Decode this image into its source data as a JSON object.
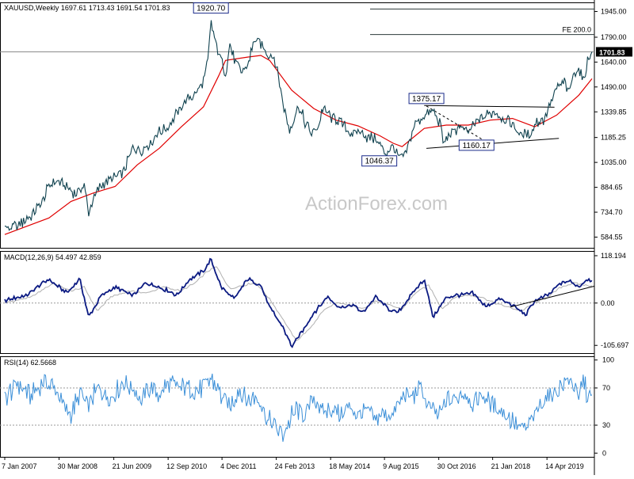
{
  "window": {
    "symbol": "XAUUSD,Weekly",
    "ohlc": "1697.61 1713.43 1691.54 1701.83"
  },
  "watermark": "ActionForex.com",
  "colors": {
    "price": "#10424f",
    "ma": "#e00000",
    "macd_main": "#0b1a82",
    "macd_signal": "#b0b0b0",
    "rsi": "#3b8fd8",
    "trendline": "#000000",
    "fe_line": "#2b3a3a",
    "last_price_bg": "#000000"
  },
  "chart_data": [
    {
      "type": "line",
      "name": "price-panel",
      "title": "XAUUSD,Weekly",
      "ylim": [
        520,
        2000
      ],
      "x_labels": [
        "7 Jan 2007",
        "30 Mar 2008",
        "21 Jun 2009",
        "12 Sep 2010",
        "4 Dec 2011",
        "24 Feb 2013",
        "18 May 2014",
        "9 Aug 2015",
        "30 Oct 2016",
        "21 Jan 2018",
        "14 Apr 2019"
      ],
      "y_ticks": [
        "1945.00",
        "1790.00",
        "1640.00",
        "1490.00",
        "1339.85",
        "1185.25",
        "1035.00",
        "884.65",
        "734.70",
        "584.55"
      ],
      "y_tick_values": [
        1945,
        1790,
        1640,
        1490,
        1339.85,
        1185.25,
        1035,
        884.65,
        734.7,
        584.55
      ],
      "last_price": {
        "label": "1701.83",
        "value": 1701.83
      },
      "hlines": [
        {
          "value": 1960,
          "label": ""
        },
        {
          "value": 1806,
          "label": "FE 200.0"
        },
        {
          "value": 1701.83,
          "label": ""
        }
      ],
      "annotations": [
        {
          "label": "1920.70",
          "year": 2011.67,
          "value": 1920.7
        },
        {
          "label": "1375.17",
          "year": 2016.55,
          "value": 1375.17
        },
        {
          "label": "1160.17",
          "year": 2017.9,
          "value": 1160.17
        },
        {
          "label": "1046.37",
          "year": 2015.95,
          "value": 1046.37
        }
      ],
      "trendlines": [
        {
          "x": [
            2016.5,
            2019.45
          ],
          "y": [
            1378,
            1368
          ],
          "dashed": false
        },
        {
          "x": [
            2016.55,
            2019.55
          ],
          "y": [
            1120,
            1180
          ],
          "dashed": false
        },
        {
          "x": [
            2016.55,
            2017.9
          ],
          "y": [
            1375,
            1160
          ],
          "dashed": true
        }
      ],
      "series": [
        {
          "name": "XAUUSD",
          "x": [
            2007.0,
            2007.3,
            2007.6,
            2007.9,
            2008.0,
            2008.2,
            2008.4,
            2008.6,
            2008.8,
            2008.9,
            2009.1,
            2009.3,
            2009.5,
            2009.7,
            2009.9,
            2010.1,
            2010.3,
            2010.5,
            2010.7,
            2010.9,
            2011.1,
            2011.3,
            2011.5,
            2011.6,
            2011.67,
            2011.75,
            2011.85,
            2012.0,
            2012.1,
            2012.2,
            2012.35,
            2012.5,
            2012.65,
            2012.8,
            2012.95,
            2013.1,
            2013.2,
            2013.3,
            2013.45,
            2013.55,
            2013.65,
            2013.8,
            2013.95,
            2014.1,
            2014.2,
            2014.4,
            2014.6,
            2014.75,
            2014.9,
            2015.05,
            2015.2,
            2015.4,
            2015.6,
            2015.8,
            2015.95,
            2016.1,
            2016.25,
            2016.4,
            2016.55,
            2016.7,
            2016.85,
            2016.95,
            2017.05,
            2017.3,
            2017.5,
            2017.7,
            2017.9,
            2018.1,
            2018.3,
            2018.5,
            2018.7,
            2018.9,
            2019.05,
            2019.2,
            2019.4,
            2019.55,
            2019.7,
            2019.75,
            2019.8,
            2019.9,
            2020.0,
            2020.1,
            2020.2,
            2020.3
          ],
          "values": [
            632,
            655,
            715,
            820,
            905,
            930,
            880,
            850,
            890,
            740,
            870,
            920,
            940,
            990,
            1120,
            1110,
            1150,
            1220,
            1250,
            1330,
            1400,
            1450,
            1520,
            1640,
            1890,
            1780,
            1690,
            1570,
            1740,
            1650,
            1580,
            1620,
            1770,
            1750,
            1690,
            1660,
            1560,
            1390,
            1230,
            1300,
            1380,
            1280,
            1210,
            1250,
            1360,
            1310,
            1290,
            1230,
            1200,
            1220,
            1190,
            1180,
            1090,
            1120,
            1060,
            1100,
            1250,
            1290,
            1330,
            1340,
            1280,
            1140,
            1200,
            1250,
            1220,
            1280,
            1320,
            1340,
            1300,
            1260,
            1200,
            1210,
            1280,
            1290,
            1410,
            1500,
            1520,
            1460,
            1480,
            1580,
            1600,
            1520,
            1640,
            1701.83
          ]
        },
        {
          "name": "MA",
          "x": [
            2007.0,
            2008.0,
            2008.5,
            2009.0,
            2009.5,
            2010.0,
            2010.5,
            2011.0,
            2011.5,
            2011.85,
            2012.0,
            2012.5,
            2012.8,
            2013.0,
            2013.5,
            2014.0,
            2014.5,
            2015.0,
            2015.5,
            2015.8,
            2016.0,
            2016.5,
            2017.0,
            2017.5,
            2018.0,
            2018.5,
            2019.0,
            2019.5,
            2020.0,
            2020.3
          ],
          "values": [
            600,
            700,
            800,
            850,
            890,
            1020,
            1120,
            1250,
            1370,
            1560,
            1650,
            1670,
            1680,
            1650,
            1470,
            1360,
            1290,
            1255,
            1195,
            1150,
            1130,
            1240,
            1260,
            1260,
            1290,
            1300,
            1250,
            1320,
            1440,
            1540
          ]
        }
      ]
    },
    {
      "type": "line",
      "name": "macd-panel",
      "title": "MACD(12,26,9) 54.497 42.859",
      "ylim": [
        -125,
        130
      ],
      "y_ticks": [
        "118.194",
        "0.00",
        "-105.697"
      ],
      "y_tick_values": [
        118.194,
        0,
        -105.697
      ],
      "series": [
        {
          "name": "MACD main",
          "x": [
            2007.0,
            2007.5,
            2008.0,
            2008.4,
            2008.7,
            2008.9,
            2009.2,
            2009.5,
            2009.9,
            2010.2,
            2010.5,
            2010.9,
            2011.2,
            2011.5,
            2011.67,
            2011.9,
            2012.2,
            2012.5,
            2012.8,
            2013.0,
            2013.3,
            2013.5,
            2013.8,
            2014.0,
            2014.3,
            2014.6,
            2014.9,
            2015.1,
            2015.4,
            2015.7,
            2015.9,
            2016.2,
            2016.5,
            2016.7,
            2017.0,
            2017.3,
            2017.6,
            2017.9,
            2018.2,
            2018.5,
            2018.8,
            2019.0,
            2019.3,
            2019.6,
            2019.8,
            2020.0,
            2020.2,
            2020.3
          ],
          "values": [
            5,
            20,
            60,
            25,
            60,
            -35,
            20,
            40,
            18,
            50,
            40,
            20,
            60,
            80,
            110,
            40,
            10,
            60,
            45,
            -10,
            -60,
            -110,
            -60,
            -25,
            15,
            -10,
            -5,
            -25,
            15,
            -15,
            -25,
            20,
            60,
            -35,
            15,
            20,
            25,
            -10,
            10,
            -5,
            -30,
            5,
            20,
            50,
            55,
            40,
            60,
            54.497
          ]
        },
        {
          "name": "MACD signal",
          "x": [
            2007.0,
            2007.6,
            2008.1,
            2008.5,
            2008.8,
            2009.1,
            2009.4,
            2009.8,
            2010.2,
            2010.6,
            2011.0,
            2011.3,
            2011.6,
            2011.8,
            2012.1,
            2012.4,
            2012.7,
            2013.0,
            2013.3,
            2013.6,
            2013.9,
            2014.2,
            2014.5,
            2014.8,
            2015.1,
            2015.4,
            2015.7,
            2016.0,
            2016.3,
            2016.6,
            2016.9,
            2017.2,
            2017.5,
            2017.8,
            2018.1,
            2018.4,
            2018.7,
            2019.0,
            2019.3,
            2019.6,
            2019.9,
            2020.1,
            2020.3
          ],
          "values": [
            0,
            15,
            50,
            30,
            40,
            -20,
            15,
            30,
            25,
            40,
            30,
            50,
            80,
            90,
            35,
            45,
            50,
            10,
            -40,
            -95,
            -65,
            -20,
            0,
            -5,
            -15,
            5,
            -5,
            -15,
            25,
            45,
            -15,
            15,
            20,
            15,
            0,
            -10,
            -20,
            0,
            15,
            40,
            50,
            45,
            42.859
          ]
        }
      ],
      "trendlines": [
        {
          "x": [
            2018.45,
            2020.35
          ],
          "y": [
            -10,
            42
          ],
          "dashed": false
        }
      ]
    },
    {
      "type": "line",
      "name": "rsi-panel",
      "title": "RSI(14) 62.5668",
      "ylim": [
        -4,
        104
      ],
      "y_ticks": [
        "100",
        "70",
        "30",
        "0"
      ],
      "y_tick_values": [
        100,
        70,
        30,
        0
      ],
      "levels": [
        70,
        30
      ],
      "series": [
        {
          "name": "RSI",
          "x": [
            2007.0,
            2007.3,
            2007.6,
            2007.9,
            2008.1,
            2008.3,
            2008.5,
            2008.7,
            2008.9,
            2009.1,
            2009.3,
            2009.5,
            2009.7,
            2009.9,
            2010.1,
            2010.3,
            2010.5,
            2010.7,
            2010.9,
            2011.1,
            2011.3,
            2011.5,
            2011.7,
            2011.9,
            2012.1,
            2012.3,
            2012.5,
            2012.7,
            2012.9,
            2013.1,
            2013.3,
            2013.45,
            2013.6,
            2013.8,
            2014.0,
            2014.2,
            2014.4,
            2014.6,
            2014.8,
            2015.0,
            2015.2,
            2015.4,
            2015.6,
            2015.8,
            2016.0,
            2016.2,
            2016.4,
            2016.6,
            2016.8,
            2017.0,
            2017.2,
            2017.4,
            2017.6,
            2017.8,
            2018.0,
            2018.2,
            2018.4,
            2018.6,
            2018.8,
            2019.0,
            2019.2,
            2019.4,
            2019.6,
            2019.8,
            2019.9,
            2020.0,
            2020.1,
            2020.2,
            2020.3
          ],
          "values": [
            60,
            75,
            62,
            80,
            70,
            55,
            40,
            65,
            50,
            70,
            60,
            66,
            75,
            70,
            55,
            72,
            62,
            75,
            68,
            74,
            65,
            72,
            78,
            60,
            50,
            68,
            55,
            62,
            40,
            30,
            20,
            35,
            48,
            40,
            60,
            45,
            50,
            40,
            48,
            42,
            45,
            35,
            40,
            44,
            62,
            60,
            70,
            50,
            40,
            55,
            60,
            65,
            52,
            62,
            55,
            45,
            40,
            30,
            25,
            40,
            55,
            65,
            72,
            80,
            70,
            55,
            82,
            60,
            62.5668
          ]
        }
      ]
    }
  ]
}
